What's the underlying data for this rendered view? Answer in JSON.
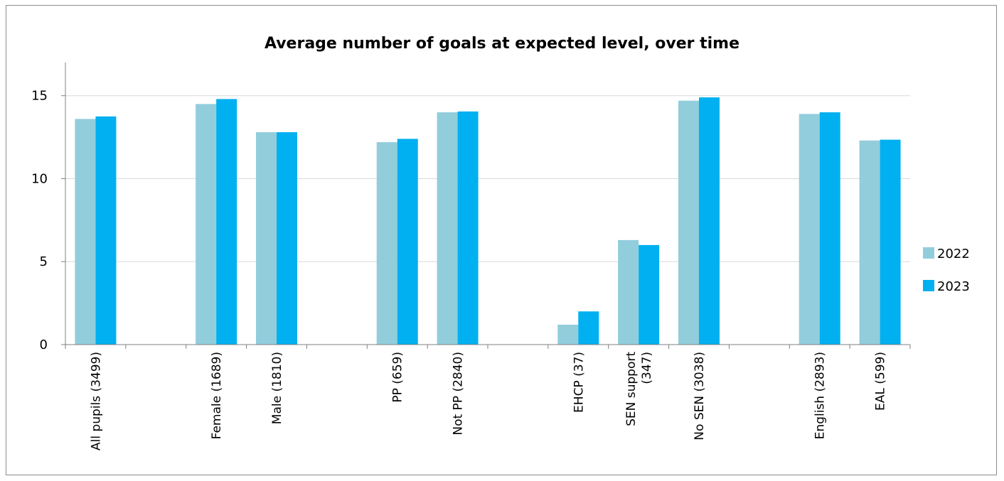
{
  "chart_data": {
    "type": "bar",
    "title": "Average number of goals at expected level, over time",
    "xlabel": "",
    "ylabel": "",
    "ylim": [
      0,
      17
    ],
    "yticks": [
      0,
      5,
      10,
      15
    ],
    "grid": true,
    "legend_position": "right",
    "categories": [
      [
        "All pupils (3499)"
      ],
      [
        ""
      ],
      [
        "Female (1689)"
      ],
      [
        "Male (1810)"
      ],
      [
        ""
      ],
      [
        "PP (659)"
      ],
      [
        "Not PP (2840)"
      ],
      [
        ""
      ],
      [
        "EHCP (37)"
      ],
      [
        "SEN support",
        "(347)"
      ],
      [
        "No SEN (3038)"
      ],
      [
        ""
      ],
      [
        "English (2893)"
      ],
      [
        "EAL (599)"
      ]
    ],
    "series": [
      {
        "name": "2022",
        "color": "#92cddc",
        "values": [
          13.6,
          null,
          14.5,
          12.8,
          null,
          12.2,
          14.0,
          null,
          1.2,
          6.3,
          14.7,
          null,
          13.9,
          12.3
        ]
      },
      {
        "name": "2023",
        "color": "#00b0f0",
        "values": [
          13.75,
          null,
          14.8,
          12.8,
          null,
          12.4,
          14.05,
          null,
          2.0,
          6.0,
          14.9,
          null,
          14.0,
          12.35
        ]
      }
    ]
  }
}
